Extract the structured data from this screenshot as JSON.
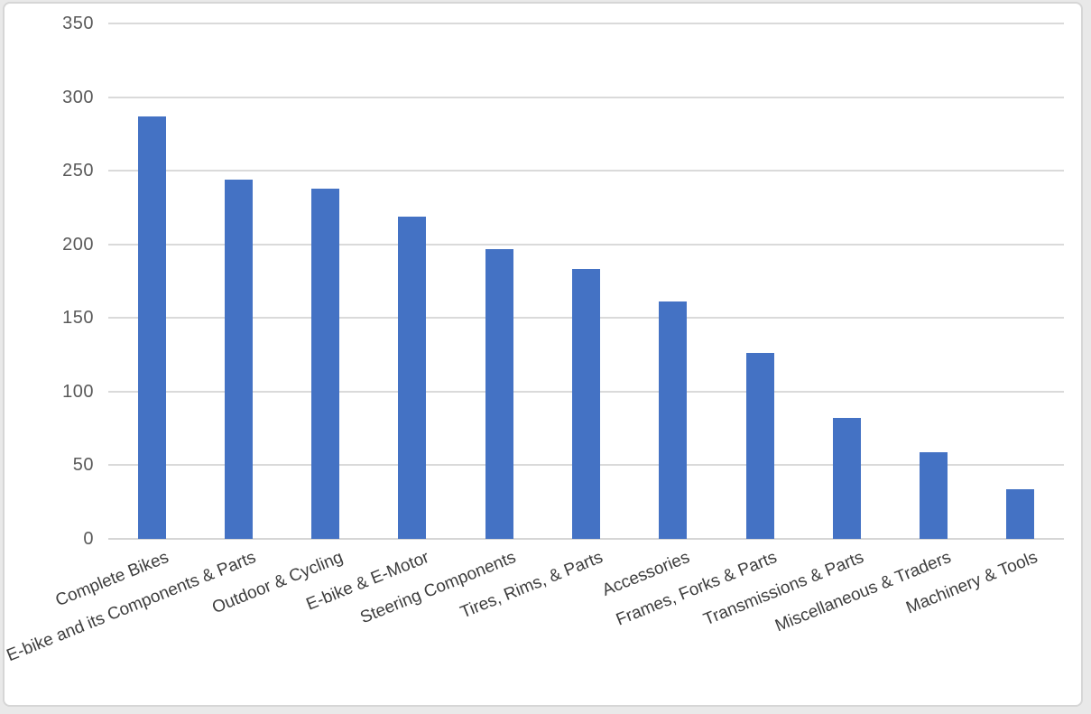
{
  "chart_data": {
    "type": "bar",
    "title": "",
    "categories": [
      "Complete Bikes",
      "E-bike and its Components & Parts",
      "Outdoor & Cycling",
      "E-bike & E-Motor",
      "Steering Components",
      "Tires, Rims, & Parts",
      "Accessories",
      "Frames, Forks & Parts",
      "Transmissions & Parts",
      "Miscellaneous & Traders",
      "Machinery & Tools"
    ],
    "values": [
      287,
      244,
      238,
      219,
      197,
      183,
      161,
      126,
      82,
      59,
      34
    ],
    "xlabel": "",
    "ylabel": "",
    "ylim": [
      0,
      350
    ],
    "yticks": [
      0,
      50,
      100,
      150,
      200,
      250,
      300,
      350
    ],
    "grid": "horizontal",
    "legend": "none",
    "colors": {
      "bar_fill": "#4472C4",
      "gridline": "#dadada",
      "axis_line": "#d6d6d6",
      "y_tick_label": "#595959",
      "x_tick_label": "#3d3d3d",
      "frame_border": "#d6d6d6",
      "background": "#ffffff"
    }
  }
}
